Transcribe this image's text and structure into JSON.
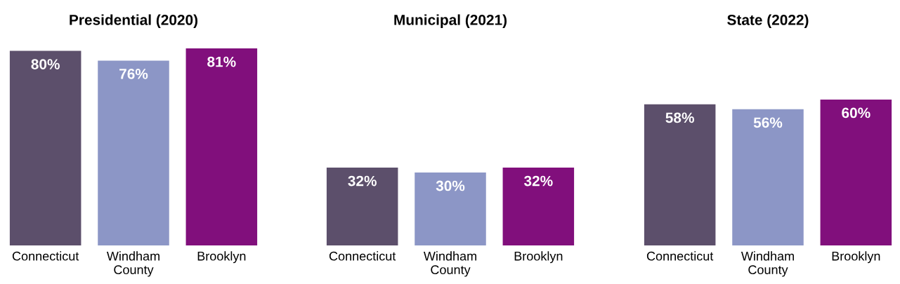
{
  "chart_data": [
    {
      "type": "bar",
      "title": "Presidential (2020)",
      "categories": [
        "Connecticut",
        "Windham\nCounty",
        "Brooklyn"
      ],
      "values": [
        80,
        76,
        81
      ],
      "colors": [
        "#5c4f6b",
        "#8c96c6",
        "#810f7c"
      ],
      "value_labels": [
        "80%",
        "76%",
        "81%"
      ],
      "tick_labels": "x"
    },
    {
      "type": "bar",
      "title": "Municipal (2021)",
      "categories": [
        "Connecticut",
        "Windham\nCounty",
        "Brooklyn"
      ],
      "values": [
        32,
        30,
        32
      ],
      "colors": [
        "#5c4f6b",
        "#8c96c6",
        "#810f7c"
      ],
      "value_labels": [
        "32%",
        "30%",
        "32%"
      ],
      "tick_labels": "x"
    },
    {
      "type": "bar",
      "title": "State (2022)",
      "categories": [
        "Connecticut",
        "Windham\nCounty",
        "Brooklyn"
      ],
      "values": [
        58,
        56,
        60
      ],
      "colors": [
        "#5c4f6b",
        "#8c96c6",
        "#810f7c"
      ],
      "value_labels": [
        "58%",
        "56%",
        "60%"
      ],
      "tick_labels": "x"
    }
  ]
}
